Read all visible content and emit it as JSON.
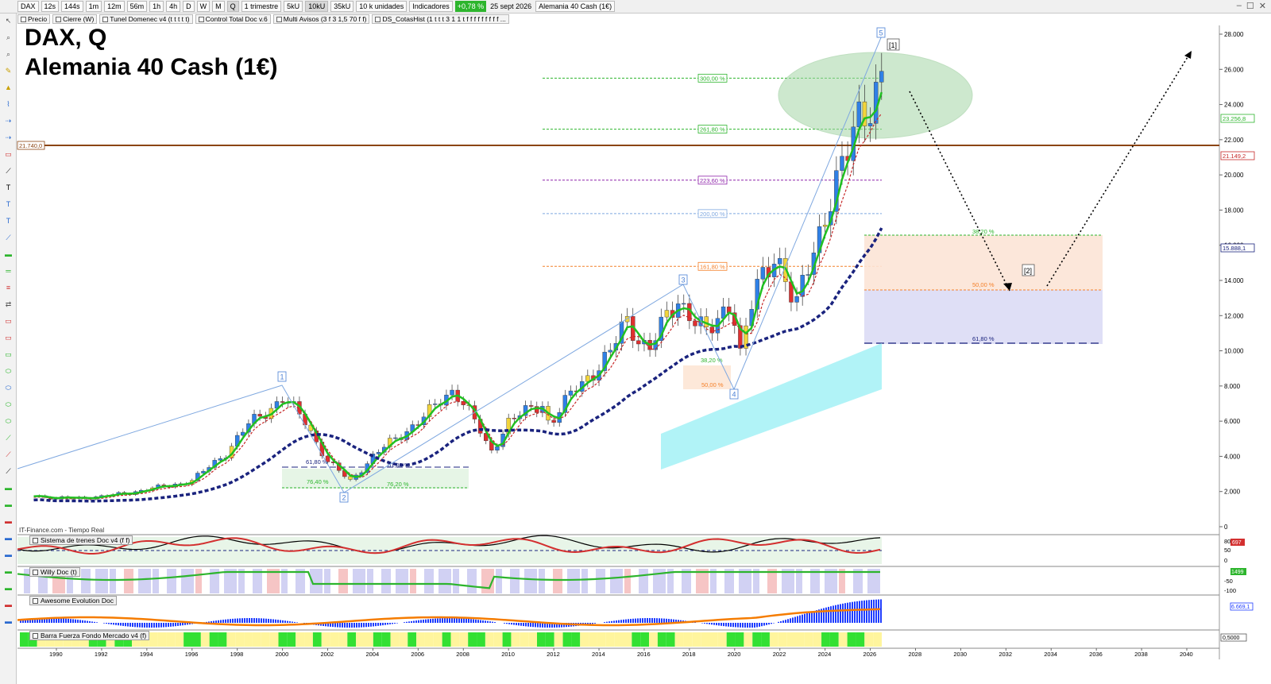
{
  "toolbar": {
    "symbol": "DAX",
    "intervals": [
      "12s",
      "144s",
      "1m",
      "12m",
      "56m",
      "1h",
      "4h",
      "D",
      "W",
      "M",
      "Q"
    ],
    "active_interval": "Q",
    "period": "1 trimestre",
    "units_buttons": [
      "5kU",
      "10kU",
      "35kU"
    ],
    "active_units": "10kU",
    "units_select": "10 k unidades",
    "indicators_label": "Indicadores",
    "change_badge": "+0,78 %",
    "date": "25 sept 2026",
    "instrument_name": "Alemania 40 Cash (1€)"
  },
  "indicator_bar": [
    "Precio",
    "Cierre (W)",
    "Tunel Domenec v4 (t t t t t)",
    "Control Total Doc v.6",
    "Multi Avisos (3 f 3 1,5 70 f f)",
    "DS_CotasHist (1 t t t 3 1 1 t f f f f f f f f f ..."
  ],
  "chart": {
    "title_line1": "DAX, Q",
    "title_line2": "Alemania 40 Cash (1€)",
    "source": "IT-Finance.com - Tiempo Real",
    "price_axis": [
      "28.000",
      "26.000",
      "24.000",
      "22.000",
      "20.000",
      "18.000",
      "16.000",
      "14.000",
      "12.000",
      "10.000",
      "8.000",
      "6.000",
      "4.000",
      "2.000",
      "0"
    ],
    "price_labels": {
      "last": "23.256,8",
      "line": "21.149,2",
      "ma": "15.888,1"
    },
    "horizontal_line_label": "21.740,0",
    "x_axis_years": [
      "1990",
      "1992",
      "1994",
      "1996",
      "1998",
      "2000",
      "2002",
      "2004",
      "2006",
      "2008",
      "2010",
      "2012",
      "2014",
      "2016",
      "2018",
      "2020",
      "2022",
      "2024",
      "2026",
      "2028",
      "2030",
      "2032",
      "2034",
      "2036",
      "2038",
      "2040"
    ],
    "fib_levels": [
      "300,00 %",
      "261,80 %",
      "223,60 %",
      "200,00 %",
      "161,80 %"
    ],
    "fib_correction": [
      "38,20 %",
      "50,00 %",
      "61,80 %"
    ],
    "early_fib": [
      "61,80 %",
      "61,80 %",
      "76,40 %",
      "76,20 %"
    ],
    "covid_fib": [
      "38,20 %",
      "50,00 %"
    ],
    "wave_labels": [
      "1",
      "2",
      "3",
      "4",
      "5"
    ],
    "projection_labels": [
      "[1]",
      "[2]"
    ]
  },
  "panes": {
    "trend": {
      "label": "Sistema de trenes Doc v4 (f f)",
      "axis": [
        "80",
        "50",
        "0"
      ],
      "value": "697"
    },
    "willy": {
      "label": "Willy Doc (t)",
      "axis": [
        "-50",
        "-100"
      ],
      "value": "1499"
    },
    "awesome": {
      "label": "Awesome Evolution Doc",
      "value": "6.669,1"
    },
    "barra": {
      "label": "Barra Fuerza Fondo Mercado v4 (f)",
      "value": "0,5000"
    }
  },
  "colors": {
    "up_candle": "#2f80e6",
    "down_candle": "#e03030",
    "ma_green": "#21c021",
    "ma_blue": "#1a237e",
    "brown_line": "#8b4513"
  }
}
